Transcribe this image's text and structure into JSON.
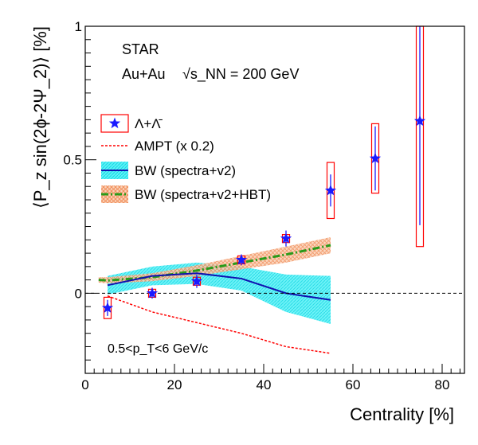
{
  "chart_data": {
    "type": "scatter",
    "xlabel": "Centrality [%]",
    "ylabel": "⟨P_z sin(2ϕ-2Ψ_2)⟩ [%]",
    "xlim": [
      0,
      85
    ],
    "ylim": [
      -0.3,
      1.0
    ],
    "xticks": [
      "0",
      "20",
      "40",
      "60",
      "80"
    ],
    "yticks": [
      "0",
      "0.5",
      "1"
    ],
    "annotations": {
      "experiment": "STAR",
      "system": "Au+Au",
      "energy": "√s_NN = 200 GeV",
      "pt_range": "0.5<p_T<6 GeV/c"
    },
    "legend": [
      {
        "label": "Λ+Λ̄",
        "marker": "star",
        "color": "#1a1aff"
      },
      {
        "label": "AMPT (x 0.2)",
        "line": "dashed",
        "color": "#ff0000"
      },
      {
        "label": "BW (spectra+v2)",
        "line": "solid",
        "color": "#1010b0",
        "band": "#22e6ee"
      },
      {
        "label": "BW (spectra+v2+HBT)",
        "line": "dash-dot",
        "color": "#2a9a1a",
        "band": "#f4a77c"
      }
    ],
    "series": [
      {
        "name": "Λ+Λ̄",
        "x": [
          5,
          15,
          25,
          35,
          45,
          55,
          65,
          75
        ],
        "y": [
          -0.055,
          0.0,
          0.045,
          0.125,
          0.205,
          0.385,
          0.505,
          0.645
        ],
        "stat_err": [
          0.03,
          0.02,
          0.025,
          0.02,
          0.03,
          0.06,
          0.12,
          0.39
        ],
        "sys_err": [
          0.04,
          0.015,
          0.015,
          0.015,
          0.015,
          0.105,
          0.13,
          0.47
        ]
      },
      {
        "name": "AMPT (x 0.2)",
        "x": [
          5,
          15,
          25,
          35,
          45,
          55
        ],
        "y": [
          -0.01,
          -0.07,
          -0.11,
          -0.15,
          -0.2,
          -0.225
        ]
      },
      {
        "name": "BW (spectra+v2)",
        "x": [
          5,
          15,
          25,
          35,
          45,
          55
        ],
        "y": [
          0.03,
          0.065,
          0.075,
          0.055,
          0.0,
          -0.025
        ],
        "band": [
          [
            0.065,
            -0.005
          ],
          [
            0.1,
            0.03
          ],
          [
            0.115,
            0.035
          ],
          [
            0.1,
            0.01
          ],
          [
            0.07,
            -0.07
          ],
          [
            0.065,
            -0.115
          ]
        ]
      },
      {
        "name": "BW (spectra+v2+HBT)",
        "x": [
          3,
          5,
          15,
          25,
          35,
          45,
          55
        ],
        "y": [
          0.05,
          0.048,
          0.06,
          0.085,
          0.115,
          0.145,
          0.18
        ],
        "band": [
          [
            0.06,
            0.04
          ],
          [
            0.06,
            0.037
          ],
          [
            0.075,
            0.045
          ],
          [
            0.105,
            0.065
          ],
          [
            0.14,
            0.09
          ],
          [
            0.175,
            0.115
          ],
          [
            0.21,
            0.15
          ]
        ]
      }
    ],
    "reference_line": {
      "y": 0,
      "style": "dashed"
    }
  }
}
